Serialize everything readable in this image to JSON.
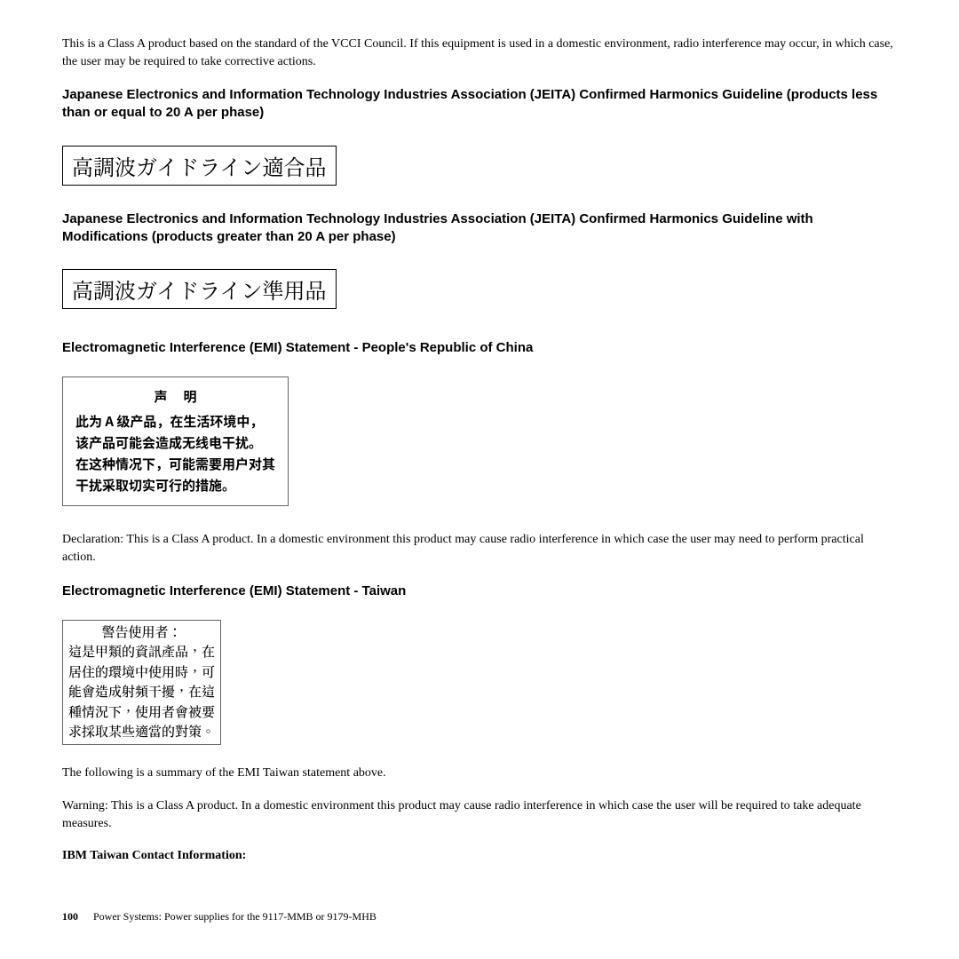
{
  "para1": "This is a Class A product based on the standard of the VCCI Council. If this equipment is used in a domestic environment, radio interference may occur, in which case, the user may be required to take corrective actions.",
  "heading_jeita1": "Japanese Electronics and Information Technology Industries Association (JEITA) Confirmed Harmonics Guideline (products less than or equal to 20 A per phase)",
  "jp_box1": "高調波ガイドライン適合品",
  "heading_jeita2": "Japanese Electronics and Information Technology Industries Association (JEITA) Confirmed Harmonics Guideline with Modifications (products greater than 20 A per phase)",
  "jp_box2": "高調波ガイドライン準用品",
  "heading_china": "Electromagnetic Interference (EMI) Statement - People's Republic of China",
  "cn_box": {
    "title": "声明",
    "line1": "此为 A 级产品，在生活环境中，",
    "line2": "该产品可能会造成无线电干扰。",
    "line3": "在这种情况下，可能需要用户对其",
    "line4": "干扰采取切实可行的措施。"
  },
  "para_china": "Declaration: This is a Class A product. In a domestic environment this product may cause radio interference in which case the user may need to perform practical action.",
  "heading_taiwan": "Electromagnetic Interference (EMI) Statement - Taiwan",
  "tw_box": {
    "title": "警告使用者：",
    "line1": "這是甲類的資訊產品，在",
    "line2": "居住的環境中使用時，可",
    "line3": "能會造成射頻干擾，在這",
    "line4": "種情況下，使用者會被要",
    "line5": "求採取某些適當的對策。"
  },
  "para_taiwan1": "The following is a summary of the EMI Taiwan statement above.",
  "para_taiwan2": "Warning: This is a Class A product. In a domestic environment this product may cause radio interference in which case the user will be required to take adequate measures.",
  "bold_ibm": "IBM Taiwan Contact Information:",
  "footer": {
    "pagenum": "100",
    "title": "Power Systems: Power supplies for the 9117-MMB or 9179-MHB"
  }
}
